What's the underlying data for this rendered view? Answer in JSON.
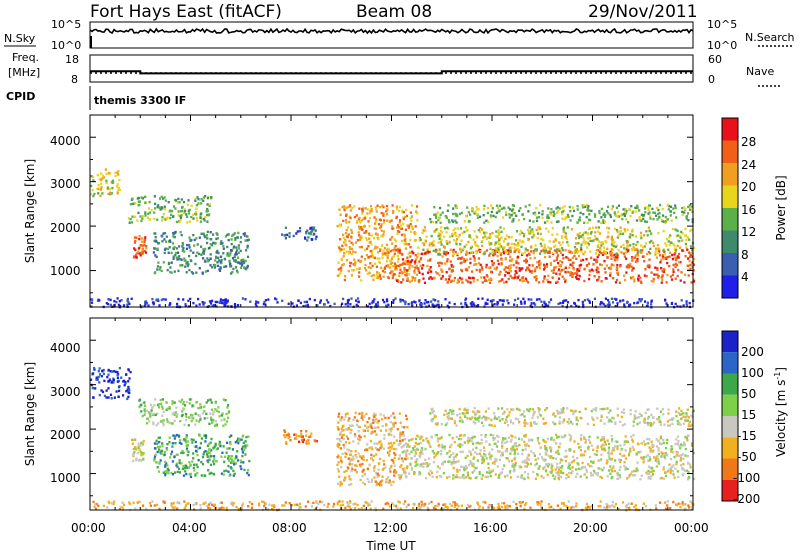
{
  "header": {
    "station": "Fort Hays East (fitACF)",
    "beam": "Beam 08",
    "date": "29/Nov/2011"
  },
  "noise_panel": {
    "left_label": "N.Sky",
    "left_ticks": [
      "10^5",
      "10^0"
    ],
    "right_label": "N.Search",
    "right_ticks": [
      "10^5",
      "10^0"
    ]
  },
  "freq_panel": {
    "left_label_1": "Freq.",
    "left_label_2": "[MHz]",
    "left_ticks": [
      "18",
      "8"
    ],
    "right_label": "Nave",
    "right_ticks": [
      "60",
      "0"
    ],
    "freq_steps": [
      [
        0,
        12
      ],
      [
        2,
        11.2
      ],
      [
        14,
        12
      ],
      [
        24,
        12
      ]
    ],
    "nave_level": 20
  },
  "cpid": {
    "label": "CPID",
    "program": "themis 3300 IF"
  },
  "chart_data": [
    {
      "type": "heatmap",
      "name": "power",
      "ylabel": "Slant Range [km]",
      "xlabel": "",
      "xlim": [
        0,
        24
      ],
      "ylim": [
        180,
        4500
      ],
      "yticks": [
        "1000",
        "2000",
        "3000",
        "4000"
      ],
      "colorbar_label": "Power [dB]",
      "colorbar_ticks": [
        "4",
        "8",
        "12",
        "16",
        "20",
        "24",
        "28"
      ],
      "colorbar_colors": [
        "#1f1fe8",
        "#3a5fb0",
        "#3f8a6a",
        "#5cb04a",
        "#e9d61c",
        "#f0a020",
        "#f06018",
        "#e8101a"
      ],
      "features": [
        {
          "t": [
            0.0,
            1.2
          ],
          "r": [
            2700,
            3300
          ],
          "level": 4
        },
        {
          "t": [
            1.5,
            4.8
          ],
          "r": [
            2100,
            2700
          ],
          "level": 3
        },
        {
          "t": [
            1.7,
            2.2
          ],
          "r": [
            1300,
            1800
          ],
          "level": 6
        },
        {
          "t": [
            2.5,
            6.3
          ],
          "r": [
            950,
            1900
          ],
          "level": 2
        },
        {
          "t": [
            7.6,
            9.0
          ],
          "r": [
            1700,
            2000
          ],
          "level": 1
        },
        {
          "t": [
            9.8,
            13.0
          ],
          "r": [
            800,
            2500
          ],
          "level": 5
        },
        {
          "t": [
            12.0,
            24.0
          ],
          "r": [
            750,
            1500
          ],
          "level": 6
        },
        {
          "t": [
            13.0,
            24.0
          ],
          "r": [
            1400,
            2000
          ],
          "level": 4
        },
        {
          "t": [
            13.5,
            24.0
          ],
          "r": [
            2100,
            2500
          ],
          "level": 3
        },
        {
          "t": [
            0.0,
            24.0
          ],
          "r": [
            200,
            400
          ],
          "level": 0
        }
      ]
    },
    {
      "type": "heatmap",
      "name": "velocity",
      "ylabel": "Slant Range [km]",
      "xlabel": "Time UT",
      "xlim": [
        0,
        24
      ],
      "ylim": [
        180,
        4500
      ],
      "xticks": [
        "00:00",
        "04:00",
        "08:00",
        "12:00",
        "16:00",
        "20:00",
        "00:00"
      ],
      "yticks": [
        "1000",
        "2000",
        "3000",
        "4000"
      ],
      "colorbar_label": "Velocity [m s",
      "colorbar_exp": "-1",
      "colorbar_ticks": [
        "200",
        "100",
        "50",
        "15",
        "-15",
        "-50",
        "-100",
        "-200"
      ],
      "colorbar_colors": [
        "#1a22c8",
        "#2a66c8",
        "#3ca84a",
        "#7ed04a",
        "#c8c8c0",
        "#f0b020",
        "#f07818",
        "#e82020"
      ],
      "features": [
        {
          "t": [
            0.0,
            1.6
          ],
          "r": [
            2700,
            3400
          ],
          "level": 0
        },
        {
          "t": [
            1.9,
            5.5
          ],
          "r": [
            2100,
            2700
          ],
          "level": 3
        },
        {
          "t": [
            1.6,
            2.1
          ],
          "r": [
            1300,
            1800
          ],
          "level": 4
        },
        {
          "t": [
            2.5,
            6.3
          ],
          "r": [
            950,
            1900
          ],
          "level": 2
        },
        {
          "t": [
            7.6,
            9.0
          ],
          "r": [
            1700,
            2000
          ],
          "level": 6
        },
        {
          "t": [
            9.8,
            12.6
          ],
          "r": [
            750,
            2400
          ],
          "level": 5
        },
        {
          "t": [
            12.4,
            24.0
          ],
          "r": [
            900,
            1900
          ],
          "level": 4
        },
        {
          "t": [
            13.5,
            24.0
          ],
          "r": [
            2100,
            2500
          ],
          "level": 4
        },
        {
          "t": [
            0.0,
            24.0
          ],
          "r": [
            200,
            400
          ],
          "level": 5
        }
      ]
    }
  ]
}
